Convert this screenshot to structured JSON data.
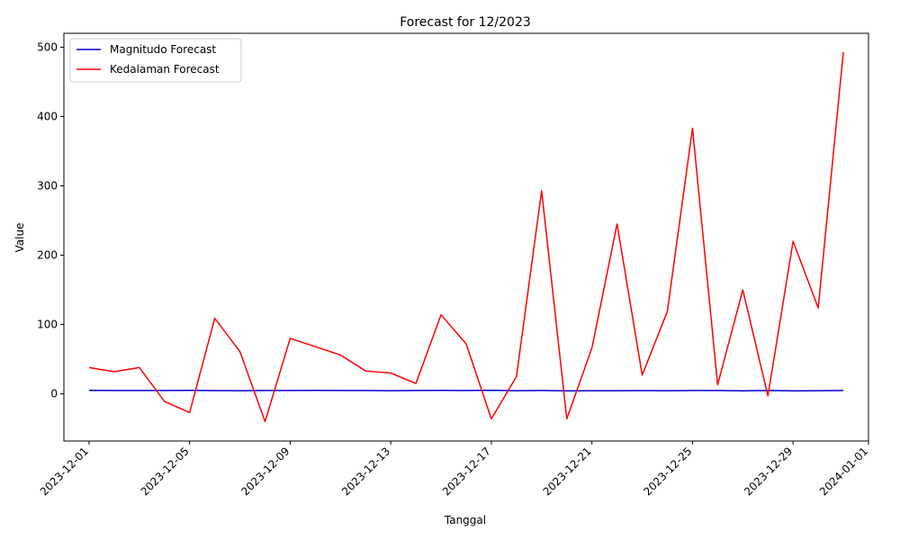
{
  "chart_data": {
    "type": "line",
    "title": "Forecast for 12/2023",
    "xlabel": "Tanggal",
    "ylabel": "Value",
    "x": [
      "2023-12-01",
      "2023-12-02",
      "2023-12-03",
      "2023-12-04",
      "2023-12-05",
      "2023-12-06",
      "2023-12-07",
      "2023-12-08",
      "2023-12-09",
      "2023-12-10",
      "2023-12-11",
      "2023-12-12",
      "2023-12-13",
      "2023-12-14",
      "2023-12-15",
      "2023-12-16",
      "2023-12-17",
      "2023-12-18",
      "2023-12-19",
      "2023-12-20",
      "2023-12-21",
      "2023-12-22",
      "2023-12-23",
      "2023-12-24",
      "2023-12-25",
      "2023-12-26",
      "2023-12-27",
      "2023-12-28",
      "2023-12-29",
      "2023-12-30",
      "2023-12-31"
    ],
    "series": [
      {
        "name": "Magnitudo Forecast",
        "color": "#0000cc",
        "values": [
          5.0,
          4.8,
          4.8,
          4.9,
          5.0,
          4.7,
          4.6,
          4.9,
          4.8,
          5.0,
          4.9,
          4.9,
          4.5,
          4.9,
          5.0,
          4.8,
          5.1,
          4.6,
          4.9,
          4.4,
          4.5,
          4.5,
          4.7,
          4.6,
          4.8,
          4.9,
          4.4,
          4.9,
          4.3,
          4.6,
          4.9
        ]
      },
      {
        "name": "Kedalaman Forecast",
        "color": "#ff0000",
        "values": [
          38,
          32,
          38,
          -11,
          -27,
          109,
          61,
          -40,
          80,
          68,
          56,
          33,
          30,
          15,
          114,
          72,
          -36,
          25,
          293,
          -36,
          66,
          245,
          27,
          119,
          383,
          13,
          150,
          -3,
          220,
          124,
          493
        ]
      }
    ],
    "xlim": [
      "2023-11-30",
      "2024-01-01"
    ],
    "ylim": [
      -68,
      520
    ],
    "x_ticks": [
      "2023-12-01",
      "2023-12-05",
      "2023-12-09",
      "2023-12-13",
      "2023-12-17",
      "2023-12-21",
      "2023-12-25",
      "2023-12-29",
      "2024-01-01"
    ],
    "y_ticks": [
      0,
      100,
      200,
      300,
      400,
      500
    ],
    "grid": false,
    "legend_position": "top-left"
  }
}
